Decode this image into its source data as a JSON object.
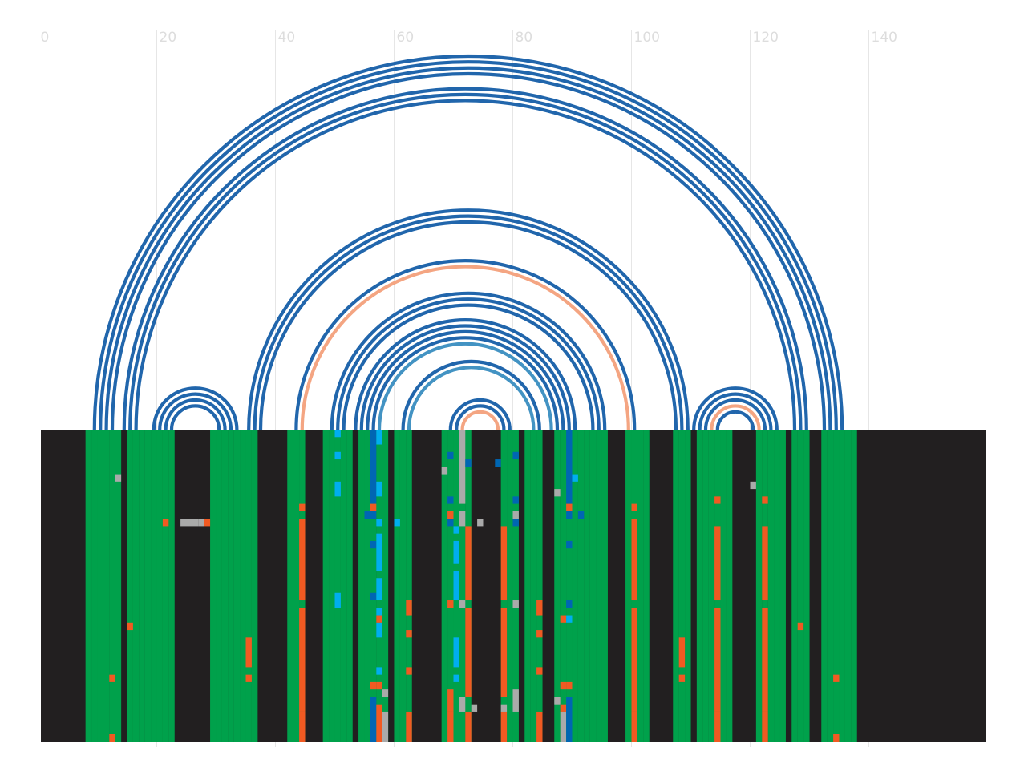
{
  "chart_data": {
    "type": "arc-diagram-with-alignment",
    "x_axis": {
      "ticks": [
        0,
        20,
        40,
        60,
        80,
        100,
        120,
        140
      ],
      "tick_labels": [
        "0",
        "20",
        "40",
        "60",
        "80",
        "100",
        "120",
        "140"
      ],
      "grid": true
    },
    "sequence_length": 159,
    "alignment_rows": 42,
    "colors": {
      "background": "#221f20",
      "match": "#00a14b",
      "mismatch_orange": "#f15a22",
      "cyan": "#00aeef",
      "blue": "#0066b3",
      "gray": "#aaaaaa",
      "arc_blue": "#2166ac",
      "arc_light_blue": "#4393c3",
      "arc_salmon": "#f4a582",
      "gridline": "#e6e6e6"
    },
    "arcs": [
      {
        "i": 9,
        "j": 135,
        "color": "arc_blue"
      },
      {
        "i": 10,
        "j": 134,
        "color": "arc_blue"
      },
      {
        "i": 11,
        "j": 133,
        "color": "arc_blue"
      },
      {
        "i": 12,
        "j": 132,
        "color": "arc_blue"
      },
      {
        "i": 14,
        "j": 129,
        "color": "arc_blue"
      },
      {
        "i": 15,
        "j": 128,
        "color": "arc_blue"
      },
      {
        "i": 16,
        "j": 127,
        "color": "arc_blue"
      },
      {
        "i": 19,
        "j": 33,
        "color": "arc_blue"
      },
      {
        "i": 20,
        "j": 32,
        "color": "arc_blue"
      },
      {
        "i": 21,
        "j": 31,
        "color": "arc_blue"
      },
      {
        "i": 22,
        "j": 30,
        "color": "arc_blue"
      },
      {
        "i": 35,
        "j": 109,
        "color": "arc_blue"
      },
      {
        "i": 36,
        "j": 108,
        "color": "arc_blue"
      },
      {
        "i": 37,
        "j": 107,
        "color": "arc_blue"
      },
      {
        "i": 43,
        "j": 100,
        "color": "arc_blue"
      },
      {
        "i": 44,
        "j": 99,
        "color": "arc_salmon"
      },
      {
        "i": 49,
        "j": 95,
        "color": "arc_blue"
      },
      {
        "i": 50,
        "j": 94,
        "color": "arc_blue"
      },
      {
        "i": 51,
        "j": 93,
        "color": "arc_blue"
      },
      {
        "i": 53,
        "j": 90,
        "color": "arc_blue"
      },
      {
        "i": 54,
        "j": 89,
        "color": "arc_blue"
      },
      {
        "i": 55,
        "j": 88,
        "color": "arc_blue"
      },
      {
        "i": 56,
        "j": 87,
        "color": "arc_blue"
      },
      {
        "i": 57,
        "j": 86,
        "color": "arc_light_blue"
      },
      {
        "i": 61,
        "j": 84,
        "color": "arc_blue"
      },
      {
        "i": 62,
        "j": 83,
        "color": "arc_light_blue"
      },
      {
        "i": 69,
        "j": 79,
        "color": "arc_blue"
      },
      {
        "i": 70,
        "j": 78,
        "color": "arc_blue"
      },
      {
        "i": 71,
        "j": 77,
        "color": "arc_salmon"
      },
      {
        "i": 110,
        "j": 124,
        "color": "arc_blue"
      },
      {
        "i": 111,
        "j": 123,
        "color": "arc_blue"
      },
      {
        "i": 112,
        "j": 122,
        "color": "arc_blue"
      },
      {
        "i": 113,
        "j": 121,
        "color": "arc_salmon"
      },
      {
        "i": 114,
        "j": 120,
        "color": "arc_blue"
      }
    ],
    "match_columns": [
      8,
      9,
      10,
      11,
      12,
      13,
      15,
      16,
      17,
      18,
      19,
      20,
      21,
      22,
      29,
      30,
      31,
      32,
      33,
      34,
      35,
      36,
      42,
      43,
      44,
      48,
      49,
      50,
      51,
      52,
      54,
      55,
      56,
      57,
      58,
      60,
      61,
      62,
      68,
      69,
      70,
      71,
      72,
      78,
      79,
      80,
      82,
      83,
      84,
      87,
      88,
      89,
      90,
      91,
      92,
      93,
      94,
      95,
      99,
      100,
      101,
      102,
      107,
      108,
      109,
      111,
      112,
      113,
      114,
      115,
      116,
      121,
      122,
      123,
      124,
      125,
      127,
      128,
      129,
      132,
      133,
      134,
      135,
      136,
      137
    ],
    "variant_columns": [
      {
        "col": 12,
        "color": "mismatch_orange",
        "segments": [
          [
            33,
            34
          ],
          [
            41,
            42
          ]
        ]
      },
      {
        "col": 13,
        "color": "gray",
        "segments": [
          [
            6,
            7
          ]
        ]
      },
      {
        "col": 15,
        "color": "mismatch_orange",
        "segments": [
          [
            26,
            27
          ]
        ]
      },
      {
        "col": 21,
        "color": "mismatch_orange",
        "segments": [
          [
            12,
            13
          ]
        ]
      },
      {
        "col": 24,
        "color": "gray",
        "segments": [
          [
            12,
            13
          ]
        ]
      },
      {
        "col": 25,
        "color": "gray",
        "segments": [
          [
            12,
            13
          ]
        ]
      },
      {
        "col": 26,
        "color": "gray",
        "segments": [
          [
            12,
            13
          ]
        ]
      },
      {
        "col": 27,
        "color": "gray",
        "segments": [
          [
            12,
            13
          ]
        ]
      },
      {
        "col": 28,
        "color": "mismatch_orange",
        "segments": [
          [
            12,
            13
          ]
        ]
      },
      {
        "col": 35,
        "color": "mismatch_orange",
        "segments": [
          [
            28,
            32
          ],
          [
            33,
            34
          ]
        ]
      },
      {
        "col": 44,
        "color": "mismatch_orange",
        "segments": [
          [
            10,
            11
          ],
          [
            12,
            23
          ],
          [
            24,
            38
          ],
          [
            38,
            42
          ]
        ]
      },
      {
        "col": 50,
        "color": "cyan",
        "segments": [
          [
            0,
            1
          ],
          [
            3,
            4
          ],
          [
            7,
            9
          ],
          [
            22,
            24
          ]
        ]
      },
      {
        "col": 55,
        "color": "blue",
        "segments": [
          [
            11,
            12
          ]
        ]
      },
      {
        "col": 56,
        "color": "blue",
        "segments": [
          [
            0,
            10
          ],
          [
            11,
            12
          ],
          [
            15,
            16
          ],
          [
            22,
            23
          ],
          [
            36,
            42
          ]
        ]
      },
      {
        "col": 56,
        "color": "mismatch_orange",
        "segments": [
          [
            10,
            11
          ],
          [
            34,
            35
          ]
        ]
      },
      {
        "col": 57,
        "color": "cyan",
        "segments": [
          [
            0,
            2
          ],
          [
            7,
            9
          ],
          [
            12,
            13
          ],
          [
            14,
            19
          ],
          [
            20,
            23
          ],
          [
            24,
            25
          ],
          [
            26,
            28
          ],
          [
            32,
            33
          ]
        ]
      },
      {
        "col": 57,
        "color": "mismatch_orange",
        "segments": [
          [
            25,
            26
          ],
          [
            34,
            35
          ],
          [
            37,
            42
          ]
        ]
      },
      {
        "col": 58,
        "color": "gray",
        "segments": [
          [
            35,
            36
          ],
          [
            38,
            42
          ]
        ]
      },
      {
        "col": 60,
        "color": "cyan",
        "segments": [
          [
            12,
            13
          ]
        ]
      },
      {
        "col": 62,
        "color": "mismatch_orange",
        "segments": [
          [
            23,
            25
          ],
          [
            27,
            28
          ],
          [
            32,
            33
          ],
          [
            38,
            42
          ]
        ]
      },
      {
        "col": 68,
        "color": "gray",
        "segments": [
          [
            5,
            6
          ]
        ]
      },
      {
        "col": 69,
        "color": "blue",
        "segments": [
          [
            3,
            4
          ],
          [
            9,
            10
          ],
          [
            11,
            13
          ]
        ]
      },
      {
        "col": 69,
        "color": "mismatch_orange",
        "segments": [
          [
            11,
            12
          ],
          [
            23,
            24
          ],
          [
            35,
            38
          ],
          [
            38,
            42
          ]
        ]
      },
      {
        "col": 70,
        "color": "cyan",
        "segments": [
          [
            13,
            14
          ],
          [
            15,
            18
          ],
          [
            19,
            23
          ],
          [
            28,
            32
          ],
          [
            33,
            34
          ]
        ]
      },
      {
        "col": 71,
        "color": "gray",
        "segments": [
          [
            0,
            10
          ],
          [
            11,
            13
          ],
          [
            23,
            24
          ],
          [
            36,
            38
          ]
        ]
      },
      {
        "col": 72,
        "color": "blue",
        "segments": [
          [
            4,
            5
          ]
        ]
      },
      {
        "col": 72,
        "color": "mismatch_orange",
        "segments": [
          [
            13,
            23
          ],
          [
            24,
            36
          ],
          [
            38,
            42
          ]
        ]
      },
      {
        "col": 73,
        "color": "gray",
        "segments": [
          [
            37,
            38
          ]
        ]
      },
      {
        "col": 74,
        "color": "gray",
        "segments": [
          [
            12,
            13
          ]
        ]
      },
      {
        "col": 77,
        "color": "blue",
        "segments": [
          [
            4,
            5
          ]
        ]
      },
      {
        "col": 78,
        "color": "mismatch_orange",
        "segments": [
          [
            13,
            23
          ],
          [
            24,
            36
          ],
          [
            38,
            42
          ]
        ]
      },
      {
        "col": 78,
        "color": "gray",
        "segments": [
          [
            37,
            38
          ]
        ]
      },
      {
        "col": 80,
        "color": "blue",
        "segments": [
          [
            3,
            4
          ],
          [
            9,
            10
          ],
          [
            12,
            13
          ]
        ]
      },
      {
        "col": 80,
        "color": "gray",
        "segments": [
          [
            11,
            12
          ],
          [
            23,
            24
          ],
          [
            35,
            38
          ]
        ]
      },
      {
        "col": 84,
        "color": "mismatch_orange",
        "segments": [
          [
            23,
            25
          ],
          [
            27,
            28
          ],
          [
            32,
            33
          ],
          [
            38,
            42
          ]
        ]
      },
      {
        "col": 87,
        "color": "gray",
        "segments": [
          [
            8,
            9
          ],
          [
            36,
            37
          ]
        ]
      },
      {
        "col": 88,
        "color": "mismatch_orange",
        "segments": [
          [
            25,
            26
          ],
          [
            34,
            35
          ],
          [
            37,
            38
          ]
        ]
      },
      {
        "col": 88,
        "color": "gray",
        "segments": [
          [
            38,
            42
          ]
        ]
      },
      {
        "col": 89,
        "color": "blue",
        "segments": [
          [
            0,
            10
          ],
          [
            11,
            12
          ],
          [
            15,
            16
          ],
          [
            23,
            24
          ],
          [
            36,
            42
          ]
        ]
      },
      {
        "col": 89,
        "color": "mismatch_orange",
        "segments": [
          [
            10,
            11
          ],
          [
            34,
            35
          ]
        ]
      },
      {
        "col": 89,
        "color": "cyan",
        "segments": [
          [
            25,
            26
          ]
        ]
      },
      {
        "col": 90,
        "color": "cyan",
        "segments": [
          [
            6,
            7
          ]
        ]
      },
      {
        "col": 91,
        "color": "blue",
        "segments": [
          [
            11,
            12
          ]
        ]
      },
      {
        "col": 100,
        "color": "mismatch_orange",
        "segments": [
          [
            10,
            11
          ],
          [
            12,
            23
          ],
          [
            24,
            38
          ],
          [
            38,
            42
          ]
        ]
      },
      {
        "col": 108,
        "color": "mismatch_orange",
        "segments": [
          [
            28,
            32
          ],
          [
            33,
            34
          ]
        ]
      },
      {
        "col": 114,
        "color": "mismatch_orange",
        "segments": [
          [
            9,
            10
          ],
          [
            13,
            23
          ],
          [
            24,
            38
          ],
          [
            38,
            42
          ]
        ]
      },
      {
        "col": 120,
        "color": "gray",
        "segments": [
          [
            7,
            8
          ]
        ]
      },
      {
        "col": 122,
        "color": "mismatch_orange",
        "segments": [
          [
            9,
            10
          ],
          [
            13,
            23
          ],
          [
            24,
            38
          ],
          [
            38,
            42
          ]
        ]
      },
      {
        "col": 128,
        "color": "mismatch_orange",
        "segments": [
          [
            26,
            27
          ]
        ]
      },
      {
        "col": 134,
        "color": "mismatch_orange",
        "segments": [
          [
            33,
            34
          ],
          [
            41,
            42
          ]
        ]
      }
    ]
  }
}
